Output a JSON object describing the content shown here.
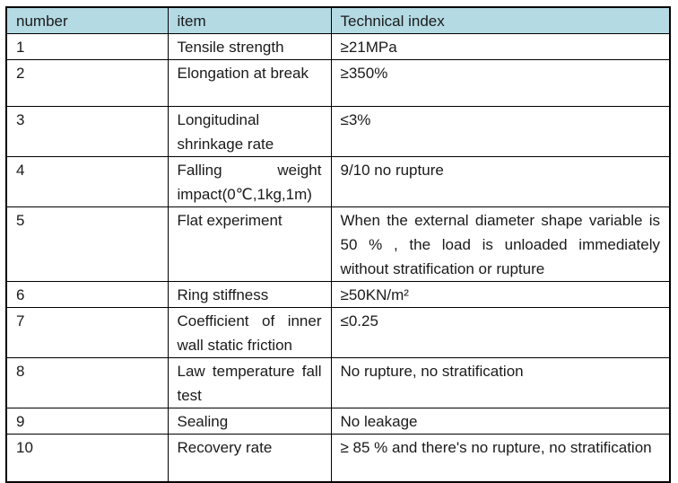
{
  "colors": {
    "header_bg": "#b4dae4",
    "border": "#000000",
    "text": "#1a1a1a"
  },
  "table": {
    "columns": [
      "number",
      "item",
      "Technical index"
    ],
    "rows": [
      {
        "number": "1",
        "item": "Tensile strength",
        "index": "≥21MPa"
      },
      {
        "number": "2",
        "item": "Elongation at break",
        "index": "≥350%"
      },
      {
        "number": "3",
        "item": "Longitudinal shrinkage rate",
        "index": "≤3%"
      },
      {
        "number": "4",
        "item": "Falling weight impact(0℃,1kg,1m)",
        "index": "9/10 no rupture"
      },
      {
        "number": "5",
        "item": "Flat experiment",
        "index": "When the external diameter shape variable is 50 % , the load is unloaded immediately without stratification or rupture"
      },
      {
        "number": "6",
        "item": "Ring stiffness",
        "index": "≥50KN/m²"
      },
      {
        "number": "7",
        "item": "Coefficient of inner wall static friction",
        "index": "≤0.25"
      },
      {
        "number": "8",
        "item": "Law temperature fall test",
        "index": "No rupture, no stratification"
      },
      {
        "number": "9",
        "item": "Sealing",
        "index": "No leakage"
      },
      {
        "number": "10",
        "item": "Recovery rate",
        "index": "≥ 85 %  and there's no rupture, no stratification"
      }
    ]
  }
}
